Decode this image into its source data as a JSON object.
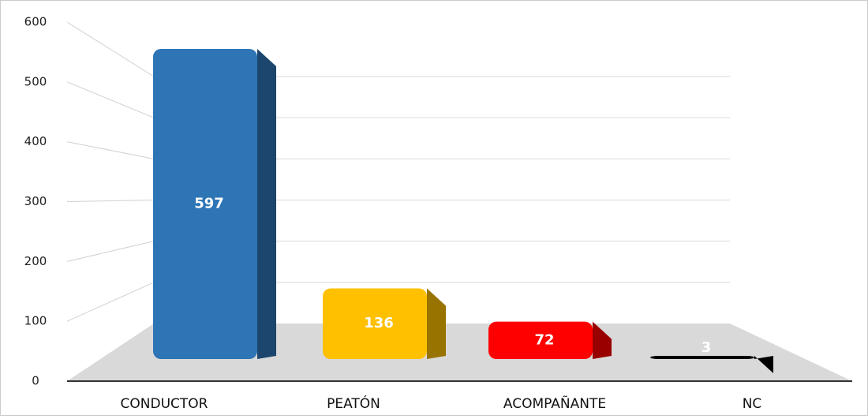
{
  "chart_data": {
    "type": "bar3d",
    "categories": [
      "CONDUCTOR",
      "PEATÓN",
      "ACOMPAÑANTE",
      "NC"
    ],
    "values": [
      597,
      136,
      72,
      3
    ],
    "colors": [
      "#2e75b6",
      "#ffc000",
      "#ff0000",
      "#000000"
    ],
    "ylim": [
      0,
      600
    ],
    "yticks": [
      0,
      100,
      200,
      300,
      400,
      500,
      600
    ],
    "grid": true
  }
}
